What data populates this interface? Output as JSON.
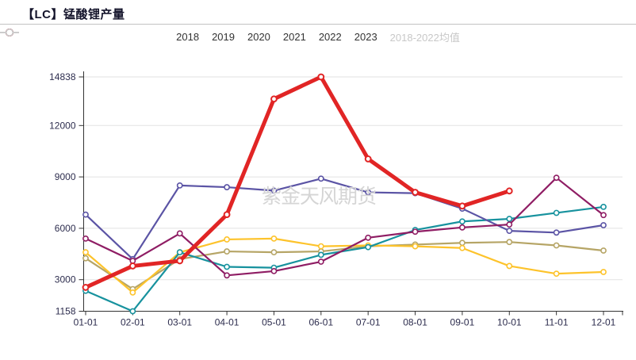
{
  "header": {
    "title": "【LC】锰酸锂产量"
  },
  "watermark": {
    "text": "紫金天风期货"
  },
  "legend": {
    "items": [
      {
        "label": "2018",
        "color": "#b6a566",
        "active": true
      },
      {
        "label": "2019",
        "color": "#fdc32b",
        "active": true
      },
      {
        "label": "2020",
        "color": "#17929e",
        "active": true
      },
      {
        "label": "2021",
        "color": "#5b54a5",
        "active": true
      },
      {
        "label": "2022",
        "color": "#8f1d64",
        "active": true
      },
      {
        "label": "2023",
        "color": "#e12525",
        "active": true
      },
      {
        "label": "2018-2022均值",
        "color": "#cccccc",
        "active": false
      }
    ]
  },
  "chart_data": {
    "type": "line",
    "title": "【LC】锰酸锂产量",
    "categories": [
      "01-01",
      "02-01",
      "03-01",
      "04-01",
      "05-01",
      "06-01",
      "07-01",
      "08-01",
      "09-01",
      "10-01",
      "11-01",
      "12-01"
    ],
    "series": [
      {
        "name": "2018",
        "color": "#b6a566",
        "values": [
          4250,
          2450,
          4200,
          4650,
          4600,
          4650,
          4950,
          5050,
          5150,
          5200,
          5000,
          4700
        ]
      },
      {
        "name": "2019",
        "color": "#fdc32b",
        "values": [
          4600,
          2250,
          4600,
          5350,
          5400,
          4950,
          5000,
          4950,
          4850,
          3800,
          3350,
          3450
        ]
      },
      {
        "name": "2020",
        "color": "#17929e",
        "values": [
          2350,
          1158,
          4600,
          3750,
          3700,
          4450,
          4900,
          5900,
          6400,
          6550,
          6900,
          7250
        ]
      },
      {
        "name": "2021",
        "color": "#5b54a5",
        "values": [
          6800,
          4200,
          8500,
          8400,
          8200,
          8900,
          8100,
          8050,
          7150,
          5850,
          5750,
          6180
        ]
      },
      {
        "name": "2022",
        "color": "#8f1d64",
        "values": [
          5400,
          4100,
          5700,
          3250,
          3500,
          4050,
          5450,
          5800,
          6050,
          6220,
          8950,
          6770
        ]
      },
      {
        "name": "2023",
        "color": "#e12525",
        "values": [
          2550,
          3800,
          4100,
          6800,
          13550,
          14838,
          10050,
          8100,
          7300,
          8180
        ]
      },
      {
        "name": "2018-2022均值",
        "color": "#cccccc",
        "values": [],
        "inactive": true
      }
    ],
    "y_ticks": [
      1158,
      3000,
      6000,
      9000,
      12000,
      14838
    ],
    "ylim": [
      1158,
      14838
    ],
    "xlabel": "",
    "ylabel": "",
    "grid": true,
    "legend_position": "top"
  },
  "colors": {
    "axis": "#333333",
    "grid": "#e2e2e2",
    "tick_label": "#2d2d4e",
    "watermark": "#d5d5d5",
    "divider": "#c3c3c3"
  }
}
